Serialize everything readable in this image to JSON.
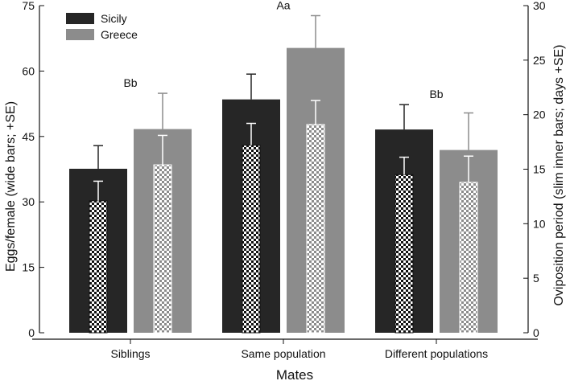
{
  "chart_data": {
    "type": "bar",
    "xlabel": "Mates",
    "ylabel": "Eggs/female (wide bars; +SE)",
    "y2label": "Oviposition period (slim inner bars; days +SE)",
    "categories": [
      "Siblings",
      "Same population",
      "Different populations"
    ],
    "ylim": [
      0,
      75
    ],
    "yticks": [
      0,
      15,
      30,
      45,
      60,
      75
    ],
    "y2lim": [
      0,
      30
    ],
    "y2ticks": [
      0,
      5,
      10,
      15,
      20,
      25,
      30
    ],
    "legend_position": "top-left",
    "series": [
      {
        "name": "Sicily",
        "color": "#262626",
        "eggs": [
          37.6,
          53.5,
          46.6
        ],
        "eggs_se": [
          5.3,
          5.8,
          5.7
        ],
        "oviposition": [
          12.1,
          17.2,
          14.5
        ],
        "oviposition_se": [
          1.8,
          2.0,
          1.6
        ]
      },
      {
        "name": "Greece",
        "color": "#8c8c8c",
        "eggs": [
          46.7,
          65.3,
          41.9
        ],
        "eggs_se": [
          8.2,
          7.4,
          8.5
        ],
        "oviposition": [
          15.4,
          19.1,
          13.8
        ],
        "oviposition_se": [
          2.7,
          2.2,
          2.4
        ]
      }
    ],
    "annotations": [
      {
        "text": "Bb",
        "category": 0
      },
      {
        "text": "Aa",
        "category": 1
      },
      {
        "text": "Bb",
        "category": 2
      }
    ]
  }
}
